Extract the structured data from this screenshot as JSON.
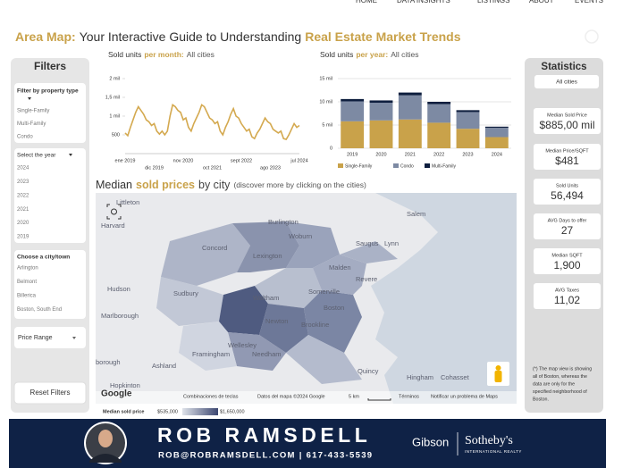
{
  "header": {
    "nav": [
      "HOME",
      "DATA INSIGHTS",
      "LISTINGS",
      "ABOUT",
      "EVENTS"
    ],
    "title": [
      "Area Map:",
      "Your Interactive Guide to Understanding",
      "Real Estate Market Trends"
    ]
  },
  "filters": {
    "title": "Filters",
    "property_type": {
      "label": "Filter by property type",
      "options": [
        "Single-Family",
        "Multi-Family",
        "Condo"
      ]
    },
    "year": {
      "label": "Select the year",
      "options": [
        "2024",
        "2023",
        "2022",
        "2021",
        "2020",
        "2019"
      ]
    },
    "city": {
      "label": "Choose a city/town",
      "options": [
        "Arlington",
        "Belmont",
        "Billerica",
        "Boston, South End"
      ]
    },
    "price_range": "Price Range",
    "reset": "Reset Filters"
  },
  "chart_data": [
    {
      "type": "line",
      "title": [
        "Sold units",
        "per month:",
        "All cities"
      ],
      "categories": [
        "ene 2019",
        null,
        null,
        null,
        null,
        null,
        null,
        null,
        null,
        null,
        null,
        "dic 2019",
        null,
        null,
        null,
        null,
        null,
        null,
        null,
        null,
        null,
        null,
        "nov 2020",
        null,
        null,
        null,
        null,
        null,
        null,
        null,
        null,
        null,
        null,
        "oct 2021",
        null,
        null,
        null,
        null,
        null,
        null,
        null,
        null,
        null,
        null,
        "sept 2022",
        null,
        null,
        null,
        null,
        null,
        null,
        null,
        null,
        null,
        null,
        "ago 2023",
        null,
        null,
        null,
        null,
        null,
        null,
        null,
        null,
        null,
        null,
        "jul 2024"
      ],
      "values": [
        550,
        480,
        700,
        900,
        1100,
        1250,
        1150,
        1050,
        900,
        850,
        750,
        800,
        600,
        520,
        600,
        500,
        600,
        1000,
        1300,
        1250,
        1150,
        1100,
        900,
        950,
        700,
        600,
        800,
        950,
        1100,
        1300,
        1250,
        1100,
        950,
        900,
        800,
        850,
        600,
        500,
        700,
        850,
        1050,
        1200,
        1000,
        950,
        800,
        700,
        600,
        650,
        450,
        400,
        550,
        650,
        800,
        950,
        850,
        800,
        650,
        600,
        550,
        600,
        400,
        380,
        500,
        650,
        800,
        700,
        750
      ],
      "color": "#d4a94f",
      "ylim": [
        0,
        2000
      ],
      "yticks": [
        500,
        {
          "value": 1000,
          "label": "1 mil"
        },
        {
          "value": 1500,
          "label": "1,5 mil"
        },
        {
          "value": 2000,
          "label": "2 mil"
        }
      ],
      "grid": false
    },
    {
      "type": "bar",
      "stacked": true,
      "title": [
        "Sold units",
        "per year:",
        "All cities"
      ],
      "categories": [
        "2019",
        "2020",
        "2021",
        "2022",
        "2023",
        "2024"
      ],
      "series": [
        {
          "name": "Single-Family",
          "color": "#c9a24a",
          "values": [
            5800,
            6000,
            6200,
            5500,
            4200,
            2400
          ]
        },
        {
          "name": "Condo",
          "color": "#7d8aa3",
          "values": [
            4300,
            3800,
            5200,
            4000,
            3600,
            2000
          ]
        },
        {
          "name": "Multi-Family",
          "color": "#0e1e3e",
          "values": [
            500,
            500,
            600,
            500,
            400,
            250
          ]
        }
      ],
      "ylim": [
        0,
        15000
      ],
      "yticks": [
        0,
        {
          "value": 5000,
          "label": "5 mil"
        },
        {
          "value": 10000,
          "label": "10 mil"
        },
        {
          "value": 15000,
          "label": "15 mil"
        }
      ],
      "grid": true
    }
  ],
  "map": {
    "title": [
      "Median",
      "sold prices",
      "by city",
      "(discover more by clicking on the cities)"
    ],
    "places": [
      "Littleton",
      "Burlington",
      "Harvard",
      "Woburn",
      "Salem",
      "Concord",
      "Lexington",
      "Saugus",
      "Lynn",
      "Malden",
      "Hudson",
      "Sudbury",
      "Waltham",
      "Somerville",
      "Revere",
      "Marlborough",
      "Boston",
      "Newton",
      "Brookline",
      "Framingham",
      "Wellesley",
      "Needham",
      "Ashland",
      "borough",
      "Hopkinton",
      "Quincy",
      "Hingham",
      "Cohasset"
    ],
    "footer": [
      "Google",
      "Combinaciones de teclas",
      "Datos del mapa ©2024 Google",
      "5 km",
      "Términos",
      "Notificar un problema de Maps"
    ],
    "legend": {
      "label": "Median sold price",
      "min": "$535,000",
      "max": "$1,650,000"
    }
  },
  "statistics": {
    "title": "Statistics",
    "scope": "All cities",
    "cards": [
      {
        "label": "Median Sold Price",
        "value": "$885,00 mil"
      },
      {
        "label": "Median Price/SQFT",
        "value": "$481"
      },
      {
        "label": "Sold Units",
        "value": "56,494"
      },
      {
        "label": "AVG Days to offer",
        "value": "27"
      },
      {
        "label": "Median SQFT",
        "value": "1,900"
      },
      {
        "label": "AVG Taxes",
        "value": "11,02"
      }
    ],
    "note": [
      "(*) The map view is showing",
      "all of Boston, whereas the",
      "data are only for the",
      "specified neighborhood of",
      "Boston."
    ]
  },
  "banner": {
    "name": "ROB RAMSDELL",
    "contact": "ROB@ROBRAMSDELL.COM | 617-433-5539",
    "brand": [
      "Gibson",
      "Sotheby's",
      "INTERNATIONAL REALTY"
    ]
  }
}
